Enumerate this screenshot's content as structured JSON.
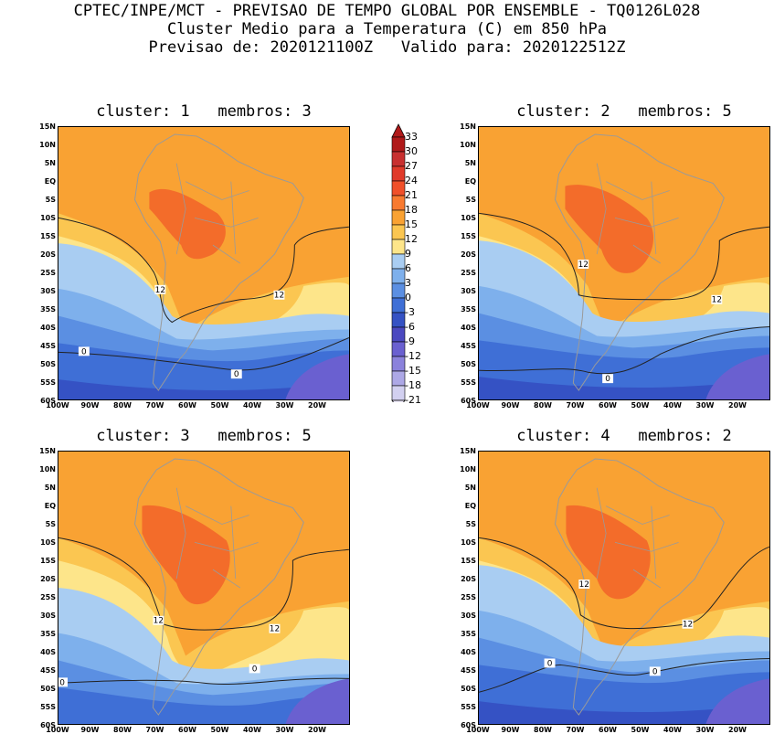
{
  "header": {
    "line1": "CPTEC/INPE/MCT - PREVISAO DE TEMPO GLOBAL POR ENSEMBLE - TQ0126L028",
    "line2": "Cluster Medio para a Temperatura (C) em 850 hPa",
    "line3": "Previsao de: 2020121100Z   Valido para: 2020122512Z"
  },
  "panels": [
    {
      "title": "cluster: 1   membros: 3"
    },
    {
      "title": "cluster: 2   membros: 5"
    },
    {
      "title": "cluster: 3   membros: 5"
    },
    {
      "title": "cluster: 4   membros: 2"
    }
  ],
  "lat_labels": [
    "15N",
    "10N",
    "5N",
    "EQ",
    "5S",
    "10S",
    "15S",
    "20S",
    "25S",
    "30S",
    "35S",
    "40S",
    "45S",
    "50S",
    "55S",
    "60S"
  ],
  "lon_labels": [
    "100W",
    "90W",
    "80W",
    "70W",
    "60W",
    "50W",
    "40W",
    "30W",
    "20W"
  ],
  "contour_labels": [
    "12",
    "12",
    "0",
    "0"
  ],
  "colorbar": {
    "levels": [
      "33",
      "30",
      "27",
      "24",
      "21",
      "18",
      "15",
      "12",
      "9",
      "6",
      "3",
      "0",
      "-3",
      "-6",
      "-9",
      "-12",
      "-15",
      "-18",
      "-21"
    ],
    "colors": [
      "#b01a1a",
      "#c83030",
      "#e03a2a",
      "#f0502a",
      "#f87a30",
      "#f9a233",
      "#fbc651",
      "#fde58a",
      "#a9cdf2",
      "#7eb0ec",
      "#5b8fe2",
      "#3f6fd6",
      "#3552c4",
      "#4b49c0",
      "#6a60d0",
      "#8b82dc",
      "#ada8e6",
      "#d2d0f0"
    ]
  },
  "colors": {
    "orange_dark": "#f36c2a",
    "orange": "#f9a233",
    "orange_light": "#fbc651",
    "yellow": "#fde58a",
    "blue_light": "#a9cdf2",
    "blue_mid": "#7eb0ec",
    "blue": "#5b8fe2",
    "blue_dark": "#3f6fd6",
    "navy": "#3552c4",
    "purple": "#6a60d0"
  }
}
